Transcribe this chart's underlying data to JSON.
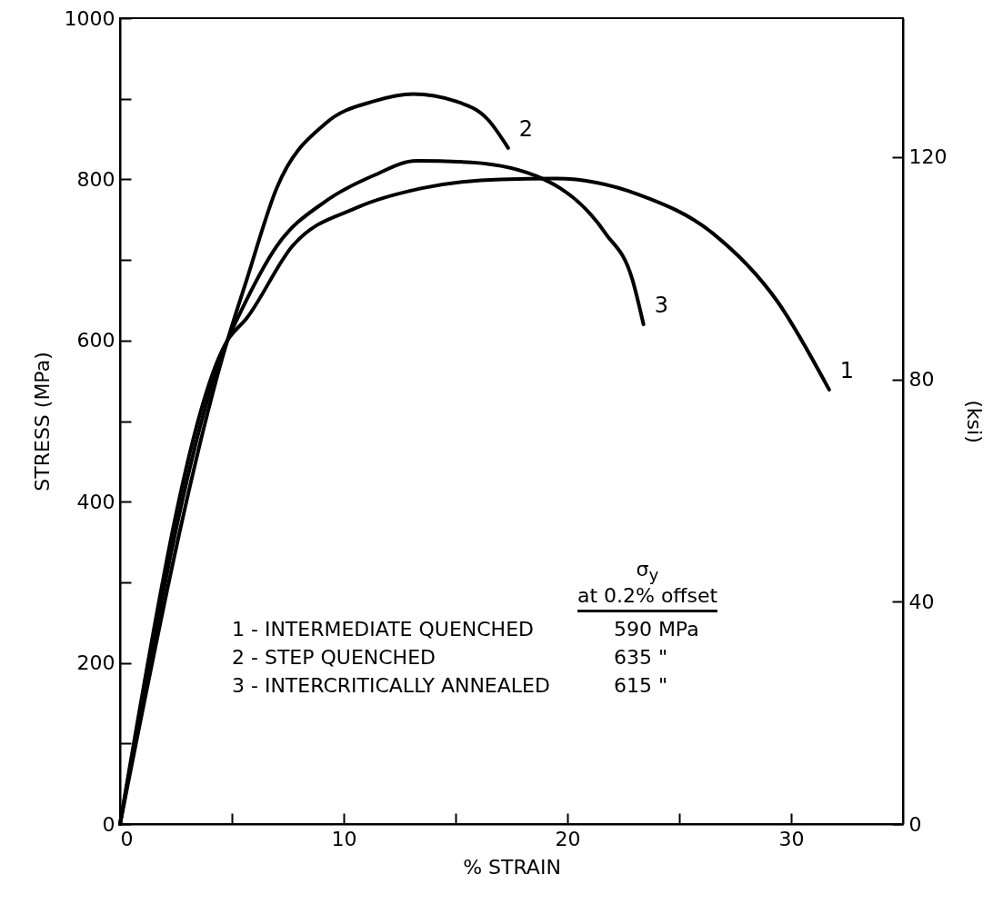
{
  "chart_data": {
    "type": "line",
    "xlabel": "% STRAIN",
    "ylabel": "STRESS (MPa)",
    "y2label": "(ksi)",
    "xlim": [
      0,
      35
    ],
    "xticks": [
      0,
      {
        "value": 5,
        "label": null
      },
      10,
      {
        "value": 15,
        "label": null
      },
      20,
      {
        "value": 25,
        "label": null
      },
      30
    ],
    "ylim": [
      0,
      1000
    ],
    "yticks": [
      0,
      {
        "value": 100,
        "label": null
      },
      200,
      {
        "value": 300,
        "label": null
      },
      400,
      {
        "value": 500,
        "label": null
      },
      600,
      {
        "value": 700,
        "label": null
      },
      800,
      {
        "value": 900,
        "label": null
      },
      1000
    ],
    "y2lim": [
      0,
      145
    ],
    "y2ticks": [
      0,
      40,
      80,
      120
    ],
    "grid": false,
    "legend": false,
    "series": [
      {
        "name": "1",
        "color": "#000000",
        "x": [
          0,
          4.8,
          5.67,
          7.7,
          10.6,
          13.5,
          17.0,
          19.5,
          23.2,
          26.5,
          29.4,
          31.7
        ],
        "values": [
          0,
          600,
          628,
          717,
          765,
          789,
          800,
          801,
          781,
          733,
          648,
          539
        ]
      },
      {
        "name": "2",
        "color": "#000000",
        "x": [
          0,
          4.8,
          5.67,
          7.0,
          9.17,
          11.35,
          13.1,
          15.0,
          16.45,
          17.35
        ],
        "values": [
          0,
          600,
          676,
          789,
          869,
          897,
          906,
          897,
          874,
          839
        ]
      },
      {
        "name": "3",
        "color": "#000000",
        "x": [
          0,
          4.8,
          5.4,
          7.0,
          9.2,
          11.35,
          13.25,
          15.7,
          18.95,
          21.7,
          22.9,
          23.4
        ],
        "values": [
          0,
          600,
          636,
          717,
          773,
          805,
          823,
          821,
          800,
          733,
          676,
          620
        ]
      }
    ],
    "annotations": [
      "σ$_{y}$",
      "at 0.2% offset",
      "1 - INTERMEDIATE QUENCHED",
      "590 MPa",
      "2 - STEP QUENCHED",
      "635 \"",
      "3 - INTERCRITICALLY ANNEALED",
      "615 \""
    ]
  }
}
